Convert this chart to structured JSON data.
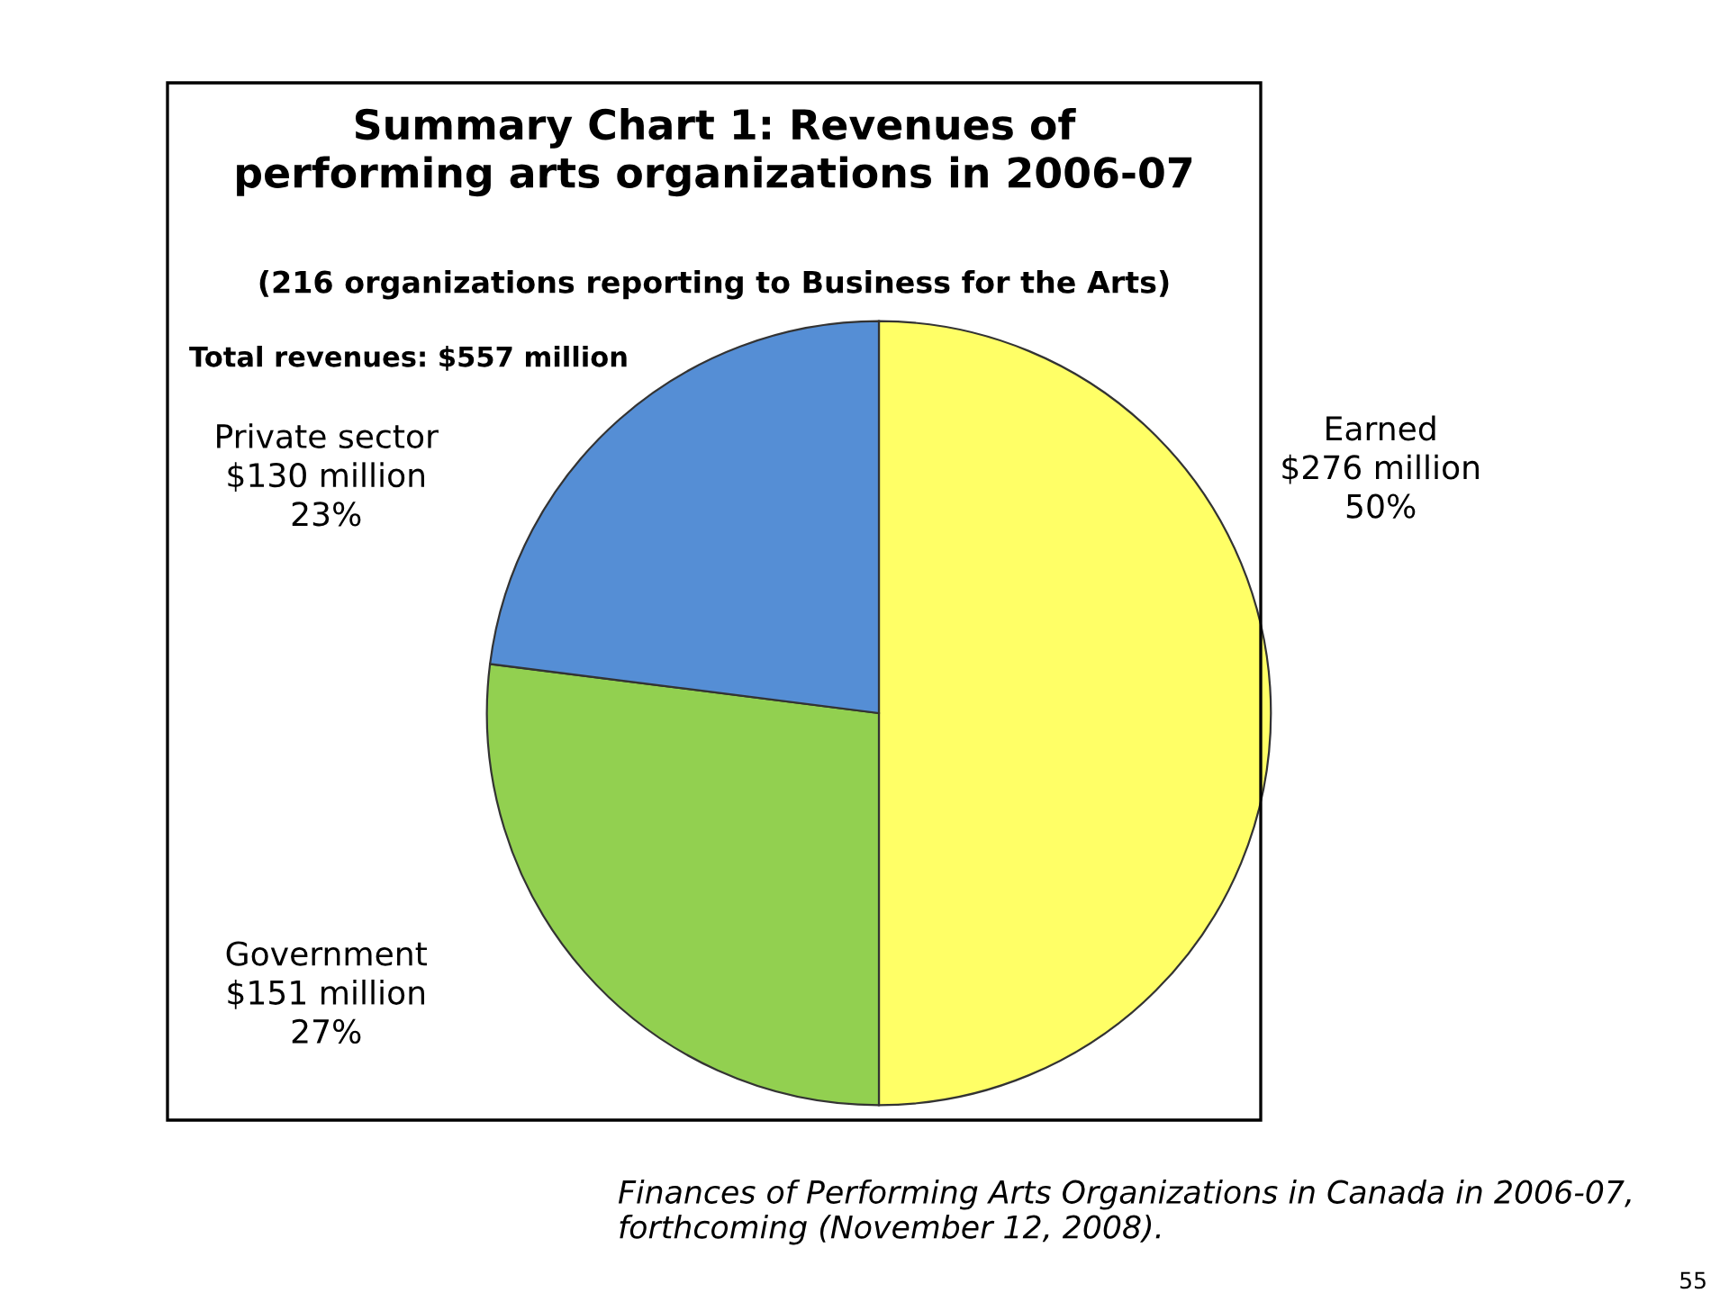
{
  "chart_data": {
    "type": "pie",
    "title": "Summary Chart 1: Revenues of\nperforming arts organizations in 2006-07",
    "subtitle": "(216 organizations reporting to Business for the Arts)",
    "categories": [
      "Earned",
      "Government",
      "Private sector"
    ],
    "values": [
      50,
      27,
      23
    ],
    "colors": [
      "#ffff66",
      "#92d050",
      "#558ed5"
    ],
    "value_labels": [
      "$276 million\n50%",
      "$151 million\n27%",
      "$130 million\n23%"
    ],
    "annotations": [
      "Total revenues: $557 million",
      "Finances of Performing Arts Organizations in Canada in 2006-07,\nforthcoming (November 12, 2008).",
      "55"
    ],
    "legend": false
  }
}
